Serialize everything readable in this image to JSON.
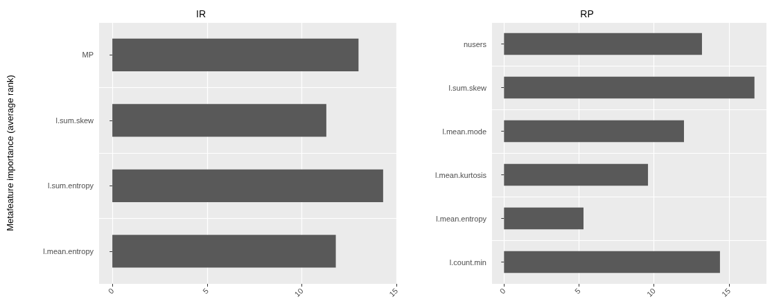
{
  "chart_data": [
    {
      "type": "bar",
      "orientation": "horizontal",
      "title": "IR",
      "ylabel": "Metafeature importance (average rank)",
      "categories": [
        "MP",
        "l.sum.skew",
        "l.sum.entropy",
        "l.mean.entropy"
      ],
      "values": [
        13.0,
        11.3,
        14.3,
        11.8
      ],
      "color": "#595959",
      "xlim": [
        -0.7,
        15.0
      ],
      "xticks": [
        0,
        5,
        10,
        15
      ],
      "grid": true
    },
    {
      "type": "bar",
      "orientation": "horizontal",
      "title": "RP",
      "categories": [
        "nusers",
        "l.sum.skew",
        "l.mean.mode",
        "l.mean.kurtosis",
        "l.mean.entropy",
        "l.count.min"
      ],
      "values": [
        13.2,
        16.7,
        12.0,
        9.6,
        5.3,
        14.4
      ],
      "color": "#595959",
      "xlim": [
        -0.8,
        17.5
      ],
      "xticks": [
        0,
        5,
        10,
        15
      ],
      "grid": true
    }
  ]
}
